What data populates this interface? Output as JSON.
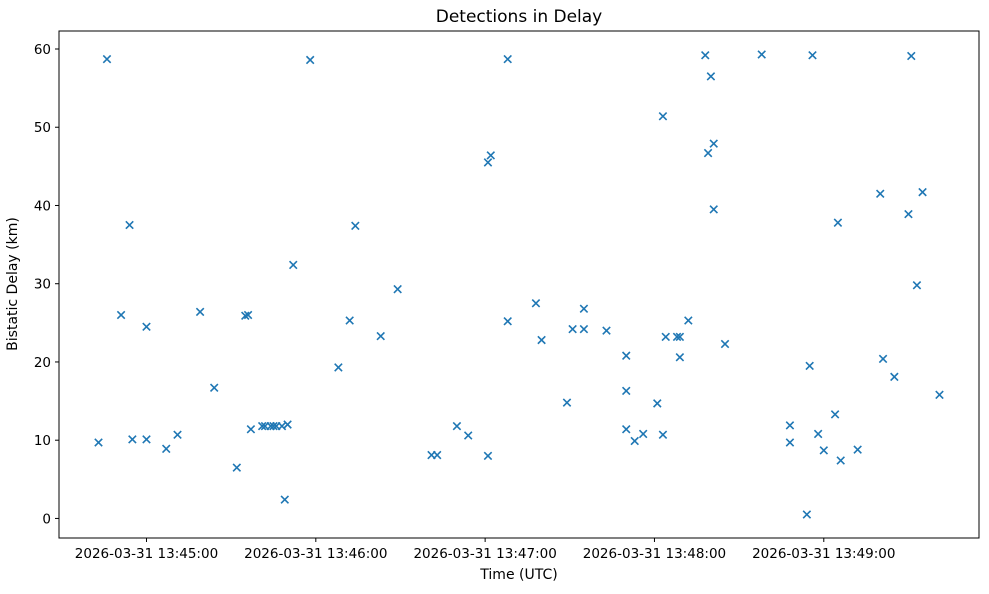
{
  "figure": {
    "background": "#ffffff",
    "spine_color": "#000000",
    "text_color": "#000000"
  },
  "chart_data": {
    "type": "scatter",
    "title": "Detections in Delay",
    "xlabel": "Time (UTC)",
    "ylabel": "Bistatic Delay (km)",
    "marker": "x",
    "marker_color": "#1f77b4",
    "grid": false,
    "legend_position": "none",
    "x_axis": {
      "date": "2026-03-31",
      "range": [
        "13:44:29",
        "13:49:55"
      ],
      "ticks": [
        {
          "value": "13:45:00",
          "label": "2026-03-31 13:45:00"
        },
        {
          "value": "13:46:00",
          "label": "2026-03-31 13:46:00"
        },
        {
          "value": "13:47:00",
          "label": "2026-03-31 13:47:00"
        },
        {
          "value": "13:48:00",
          "label": "2026-03-31 13:48:00"
        },
        {
          "value": "13:49:00",
          "label": "2026-03-31 13:49:00"
        }
      ]
    },
    "y_axis": {
      "range": [
        -2.5,
        62.3
      ],
      "ticks": [
        0,
        10,
        20,
        30,
        40,
        50,
        60
      ]
    },
    "points": [
      [
        "13:44:43",
        9.7
      ],
      [
        "13:44:46",
        58.7
      ],
      [
        "13:44:51",
        26.0
      ],
      [
        "13:44:54",
        37.5
      ],
      [
        "13:44:55",
        10.1
      ],
      [
        "13:45:00",
        24.5
      ],
      [
        "13:45:00",
        10.1
      ],
      [
        "13:45:07",
        8.9
      ],
      [
        "13:45:11",
        10.7
      ],
      [
        "13:45:19",
        26.4
      ],
      [
        "13:45:24",
        16.7
      ],
      [
        "13:45:32",
        6.5
      ],
      [
        "13:45:35",
        25.9
      ],
      [
        "13:45:36",
        26.0
      ],
      [
        "13:45:37",
        11.4
      ],
      [
        "13:45:41",
        11.8
      ],
      [
        "13:45:42",
        11.8
      ],
      [
        "13:45:44",
        11.8
      ],
      [
        "13:45:45",
        11.8
      ],
      [
        "13:45:46",
        11.8
      ],
      [
        "13:45:48",
        11.8
      ],
      [
        "13:45:49",
        2.4
      ],
      [
        "13:45:50",
        12.0
      ],
      [
        "13:45:52",
        32.4
      ],
      [
        "13:45:58",
        58.6
      ],
      [
        "13:46:08",
        19.3
      ],
      [
        "13:46:12",
        25.3
      ],
      [
        "13:46:14",
        37.4
      ],
      [
        "13:46:23",
        23.3
      ],
      [
        "13:46:29",
        29.3
      ],
      [
        "13:46:41",
        8.1
      ],
      [
        "13:46:43",
        8.1
      ],
      [
        "13:46:50",
        11.8
      ],
      [
        "13:46:54",
        10.6
      ],
      [
        "13:47:01",
        45.5
      ],
      [
        "13:47:01",
        8.0
      ],
      [
        "13:47:02",
        46.4
      ],
      [
        "13:47:08",
        58.7
      ],
      [
        "13:47:08",
        25.2
      ],
      [
        "13:47:18",
        27.5
      ],
      [
        "13:47:20",
        22.8
      ],
      [
        "13:47:29",
        14.8
      ],
      [
        "13:47:31",
        24.2
      ],
      [
        "13:47:35",
        26.8
      ],
      [
        "13:47:35",
        24.2
      ],
      [
        "13:47:43",
        24.0
      ],
      [
        "13:47:50",
        20.8
      ],
      [
        "13:47:50",
        16.3
      ],
      [
        "13:47:50",
        11.4
      ],
      [
        "13:47:53",
        9.9
      ],
      [
        "13:47:56",
        10.8
      ],
      [
        "13:48:01",
        14.7
      ],
      [
        "13:48:03",
        51.4
      ],
      [
        "13:48:03",
        10.7
      ],
      [
        "13:48:04",
        23.2
      ],
      [
        "13:48:08",
        23.2
      ],
      [
        "13:48:09",
        23.2
      ],
      [
        "13:48:09",
        20.6
      ],
      [
        "13:48:12",
        25.3
      ],
      [
        "13:48:18",
        59.2
      ],
      [
        "13:48:19",
        46.7
      ],
      [
        "13:48:20",
        56.5
      ],
      [
        "13:48:21",
        47.9
      ],
      [
        "13:48:21",
        39.5
      ],
      [
        "13:48:25",
        22.3
      ],
      [
        "13:48:38",
        59.3
      ],
      [
        "13:48:48",
        11.9
      ],
      [
        "13:48:48",
        9.7
      ],
      [
        "13:48:54",
        0.5
      ],
      [
        "13:48:55",
        19.5
      ],
      [
        "13:48:56",
        59.2
      ],
      [
        "13:48:58",
        10.8
      ],
      [
        "13:49:00",
        8.7
      ],
      [
        "13:49:04",
        13.3
      ],
      [
        "13:49:05",
        37.8
      ],
      [
        "13:49:06",
        7.4
      ],
      [
        "13:49:12",
        8.8
      ],
      [
        "13:49:20",
        41.5
      ],
      [
        "13:49:21",
        20.4
      ],
      [
        "13:49:25",
        18.1
      ],
      [
        "13:49:30",
        38.9
      ],
      [
        "13:49:31",
        59.1
      ],
      [
        "13:49:33",
        29.8
      ],
      [
        "13:49:35",
        41.7
      ],
      [
        "13:49:41",
        15.8
      ]
    ]
  }
}
